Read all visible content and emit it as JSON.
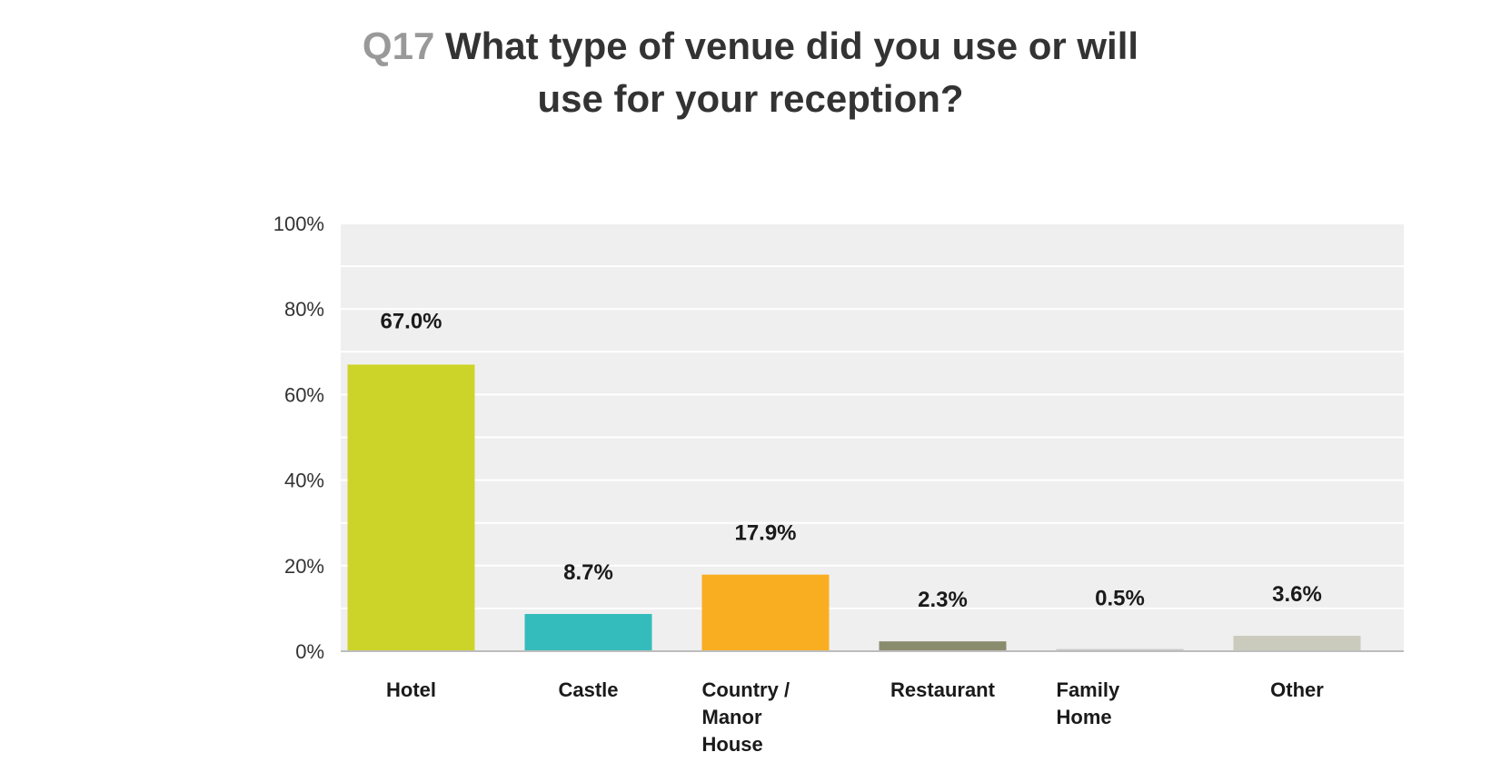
{
  "chart_data": {
    "type": "bar",
    "title_prefix": "Q17",
    "title_line1": "What type of venue did you use or will",
    "title_line2": "use for your reception?",
    "categories": [
      [
        "Hotel"
      ],
      [
        "Castle"
      ],
      [
        "Country /",
        "Manor",
        "House"
      ],
      [
        "Restaurant"
      ],
      [
        "Family",
        "Home"
      ],
      [
        "Other"
      ]
    ],
    "values": [
      67.0,
      8.7,
      17.9,
      2.3,
      0.5,
      3.6
    ],
    "data_labels": [
      "67.0%",
      "8.7%",
      "17.9%",
      "2.3%",
      "0.5%",
      "3.6%"
    ],
    "colors": [
      "#cdd429",
      "#34bcbc",
      "#f9ae22",
      "#8a8c6e",
      "#c9c9c9",
      "#cbcbbd"
    ],
    "ylim": [
      0,
      100
    ],
    "yticks": [
      "0%",
      "20%",
      "40%",
      "60%",
      "80%",
      "100%"
    ],
    "grid": true,
    "plot_background": "#efefef"
  }
}
